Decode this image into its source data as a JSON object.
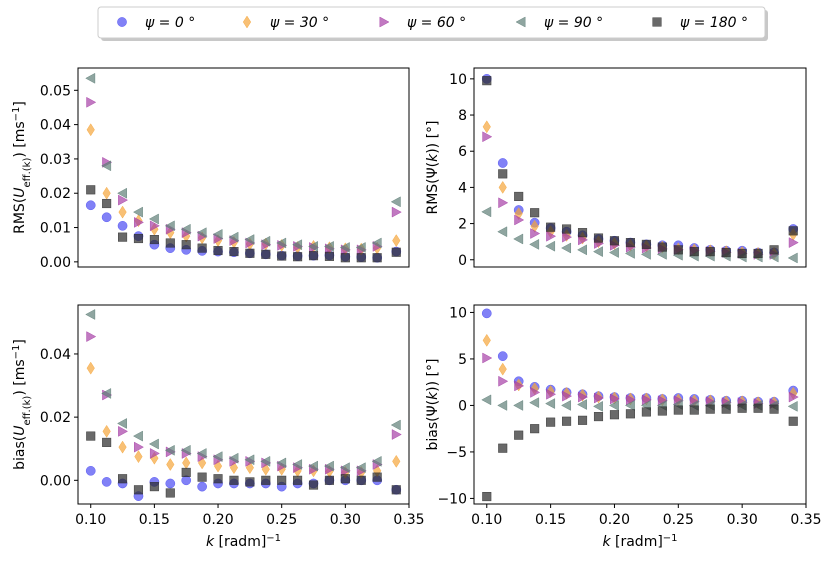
{
  "legend": {
    "entries": [
      {
        "key": "psi0",
        "label": "ψ = 0 °",
        "color": "#4b4bf2",
        "marker": "circle"
      },
      {
        "key": "psi30",
        "label": "ψ = 30 °",
        "color": "#f5a53a",
        "marker": "diamond"
      },
      {
        "key": "psi60",
        "label": "ψ = 60 °",
        "color": "#a640a6",
        "marker": "triangle-right"
      },
      {
        "key": "psi90",
        "label": "ψ = 90 °",
        "color": "#5f7f78",
        "marker": "triangle-left"
      },
      {
        "key": "psi180",
        "label": "ψ = 180 °",
        "color": "#2a2a2a",
        "marker": "square"
      }
    ]
  },
  "chart_data": [
    {
      "id": "rms_u",
      "type": "scatter",
      "title": "",
      "ylabel_prefix": "RMS(",
      "ylabel_var": "U",
      "ylabel_sub": "eff.(k)",
      "ylabel_mid": ") [ms",
      "ylabel_sup": "−1",
      "ylabel_end": "]",
      "xlabel": "",
      "xlim": [
        0.09,
        0.35
      ],
      "ylim": [
        -0.0015,
        0.0565
      ],
      "xticks": [],
      "xtick_labels": [],
      "yticks": [
        0,
        0.01,
        0.02,
        0.03,
        0.04,
        0.05
      ],
      "ytick_labels": [
        "0.00",
        "0.01",
        "0.02",
        "0.03",
        "0.04",
        "0.05"
      ],
      "x": [
        0.1,
        0.1125,
        0.125,
        0.1375,
        0.15,
        0.1625,
        0.175,
        0.1875,
        0.2,
        0.2125,
        0.225,
        0.2375,
        0.25,
        0.2625,
        0.275,
        0.2875,
        0.3,
        0.3125,
        0.325,
        0.34
      ],
      "series": [
        {
          "key": "psi0",
          "values": [
            0.0165,
            0.013,
            0.0105,
            0.0075,
            0.005,
            0.004,
            0.0035,
            0.0032,
            0.003,
            0.0028,
            0.0025,
            0.0022,
            0.0018,
            0.0017,
            0.0018,
            0.0019,
            0.0015,
            0.0014,
            0.0012,
            0.003
          ]
        },
        {
          "key": "psi30",
          "values": [
            0.0385,
            0.02,
            0.0145,
            0.012,
            0.0095,
            0.0085,
            0.0075,
            0.007,
            0.0062,
            0.0057,
            0.0052,
            0.0052,
            0.0048,
            0.0042,
            0.0045,
            0.0041,
            0.0038,
            0.0037,
            0.004,
            0.0062
          ]
        },
        {
          "key": "psi60",
          "values": [
            0.0465,
            0.029,
            0.018,
            0.0115,
            0.0105,
            0.0095,
            0.0085,
            0.0075,
            0.0068,
            0.0062,
            0.0055,
            0.005,
            0.0048,
            0.0045,
            0.0042,
            0.0038,
            0.0035,
            0.0035,
            0.0045,
            0.0145
          ]
        },
        {
          "key": "psi90",
          "values": [
            0.0535,
            0.028,
            0.02,
            0.0145,
            0.0125,
            0.0105,
            0.0095,
            0.0085,
            0.008,
            0.0072,
            0.0065,
            0.006,
            0.0055,
            0.005,
            0.0045,
            0.0045,
            0.0042,
            0.0042,
            0.0055,
            0.0175
          ]
        },
        {
          "key": "psi180",
          "values": [
            0.021,
            0.017,
            0.0072,
            0.0068,
            0.0065,
            0.0055,
            0.005,
            0.004,
            0.0033,
            0.003,
            0.0025,
            0.0022,
            0.0017,
            0.0015,
            0.0018,
            0.0016,
            0.0012,
            0.0012,
            0.0012,
            0.0028
          ]
        }
      ]
    },
    {
      "id": "rms_psi",
      "type": "scatter",
      "title": "",
      "ylabel_prefix": "RMS(Ψ(",
      "ylabel_var": "k",
      "ylabel_sub": "",
      "ylabel_mid": ")) [",
      "ylabel_sup": "",
      "ylabel_end": "°]",
      "xlabel": "",
      "xlim": [
        0.09,
        0.35
      ],
      "ylim": [
        -0.4,
        10.6
      ],
      "xticks": [],
      "xtick_labels": [],
      "yticks": [
        0,
        2,
        4,
        6,
        8,
        10
      ],
      "ytick_labels": [
        "0",
        "2",
        "4",
        "6",
        "8",
        "10"
      ],
      "x": [
        0.1,
        0.1125,
        0.125,
        0.1375,
        0.15,
        0.1625,
        0.175,
        0.1875,
        0.2,
        0.2125,
        0.225,
        0.2375,
        0.25,
        0.2625,
        0.275,
        0.2875,
        0.3,
        0.3125,
        0.325,
        0.34
      ],
      "series": [
        {
          "key": "psi0",
          "values": [
            10.0,
            5.35,
            2.75,
            2.05,
            1.75,
            1.55,
            1.35,
            1.15,
            1.05,
            0.95,
            0.85,
            0.8,
            0.8,
            0.65,
            0.55,
            0.5,
            0.5,
            0.4,
            0.4,
            1.7
          ]
        },
        {
          "key": "psi30",
          "values": [
            7.35,
            4.0,
            2.55,
            1.85,
            1.55,
            1.35,
            1.2,
            1.0,
            0.9,
            0.8,
            0.75,
            0.7,
            0.6,
            0.55,
            0.5,
            0.45,
            0.4,
            0.35,
            0.35,
            1.4
          ]
        },
        {
          "key": "psi60",
          "values": [
            6.8,
            3.15,
            2.2,
            1.45,
            1.3,
            1.25,
            1.1,
            0.9,
            0.8,
            0.7,
            0.65,
            0.6,
            0.55,
            0.5,
            0.45,
            0.4,
            0.35,
            0.3,
            0.3,
            0.95
          ]
        },
        {
          "key": "psi90",
          "values": [
            2.65,
            1.55,
            1.15,
            0.85,
            0.75,
            0.65,
            0.55,
            0.45,
            0.4,
            0.35,
            0.3,
            0.3,
            0.25,
            0.2,
            0.2,
            0.2,
            0.15,
            0.15,
            0.15,
            0.1
          ]
        },
        {
          "key": "psi180",
          "values": [
            9.9,
            4.75,
            3.5,
            2.6,
            1.8,
            1.7,
            1.5,
            1.2,
            1.05,
            0.95,
            0.85,
            0.7,
            0.55,
            0.45,
            0.45,
            0.4,
            0.35,
            0.35,
            0.55,
            1.6
          ]
        }
      ]
    },
    {
      "id": "bias_u",
      "type": "scatter",
      "title": "",
      "ylabel_prefix": "bias(",
      "ylabel_var": "U",
      "ylabel_sub": "eff.(k)",
      "ylabel_mid": ") [ms",
      "ylabel_sup": "−1",
      "ylabel_end": "]",
      "xlabel": "k [radm]",
      "xlabel_sup": "−1",
      "xlim": [
        0.09,
        0.35
      ],
      "ylim": [
        -0.0075,
        0.0555
      ],
      "xticks": [
        0.1,
        0.15,
        0.2,
        0.25,
        0.3,
        0.35
      ],
      "xtick_labels": [
        "0.10",
        "0.15",
        "0.20",
        "0.25",
        "0.30",
        "0.35"
      ],
      "yticks": [
        0,
        0.02,
        0.04
      ],
      "ytick_labels": [
        "0.00",
        "0.02",
        "0.04"
      ],
      "x": [
        0.1,
        0.1125,
        0.125,
        0.1375,
        0.15,
        0.1625,
        0.175,
        0.1875,
        0.2,
        0.2125,
        0.225,
        0.2375,
        0.25,
        0.2625,
        0.275,
        0.2875,
        0.3,
        0.3125,
        0.325,
        0.34
      ],
      "series": [
        {
          "key": "psi0",
          "values": [
            0.003,
            -0.0005,
            -0.001,
            -0.005,
            -0.0005,
            -0.001,
            0.0,
            -0.002,
            -0.001,
            -0.001,
            -0.001,
            -0.001,
            -0.002,
            -0.001,
            -0.001,
            0.0,
            0.0,
            0.0,
            0.0,
            -0.003
          ]
        },
        {
          "key": "psi30",
          "values": [
            0.0355,
            0.0155,
            0.0105,
            0.0075,
            0.007,
            0.005,
            0.0055,
            0.0055,
            0.0045,
            0.004,
            0.004,
            0.0035,
            0.0035,
            0.003,
            0.003,
            0.0028,
            0.0025,
            0.0025,
            0.003,
            0.006
          ]
        },
        {
          "key": "psi60",
          "values": [
            0.0455,
            0.027,
            0.0155,
            0.0105,
            0.0085,
            0.009,
            0.0085,
            0.0075,
            0.0065,
            0.006,
            0.006,
            0.0055,
            0.0045,
            0.004,
            0.0035,
            0.0035,
            0.003,
            0.003,
            0.005,
            0.0145
          ]
        },
        {
          "key": "psi90",
          "values": [
            0.0525,
            0.0275,
            0.018,
            0.014,
            0.0115,
            0.0095,
            0.0095,
            0.0085,
            0.0075,
            0.007,
            0.0065,
            0.006,
            0.0055,
            0.005,
            0.0045,
            0.0045,
            0.004,
            0.004,
            0.006,
            0.0175
          ]
        },
        {
          "key": "psi180",
          "values": [
            0.014,
            0.012,
            0.0005,
            -0.003,
            -0.002,
            -0.004,
            0.0025,
            0.001,
            0.0005,
            0.0,
            -0.0005,
            0.0,
            0.0,
            0.0,
            -0.0015,
            0.0,
            0.0005,
            0.0,
            0.001,
            -0.003
          ]
        }
      ]
    },
    {
      "id": "bias_psi",
      "type": "scatter",
      "title": "",
      "ylabel_prefix": "bias(Ψ(",
      "ylabel_var": "k",
      "ylabel_sub": "",
      "ylabel_mid": ")) [",
      "ylabel_sup": "",
      "ylabel_end": "°]",
      "xlabel": "k [radm]",
      "xlabel_sup": "−1",
      "xlim": [
        0.09,
        0.35
      ],
      "ylim": [
        -10.6,
        10.8
      ],
      "xticks": [
        0.1,
        0.15,
        0.2,
        0.25,
        0.3,
        0.35
      ],
      "xtick_labels": [
        "0.10",
        "0.15",
        "0.20",
        "0.25",
        "0.30",
        "0.35"
      ],
      "yticks": [
        -10,
        -5,
        0,
        5,
        10
      ],
      "ytick_labels": [
        "−10",
        "−5",
        "0",
        "5",
        "10"
      ],
      "x": [
        0.1,
        0.1125,
        0.125,
        0.1375,
        0.15,
        0.1625,
        0.175,
        0.1875,
        0.2,
        0.2125,
        0.225,
        0.2375,
        0.25,
        0.2625,
        0.275,
        0.2875,
        0.3,
        0.3125,
        0.325,
        0.34
      ],
      "series": [
        {
          "key": "psi0",
          "values": [
            9.9,
            5.3,
            2.6,
            2.0,
            1.7,
            1.4,
            1.2,
            1.0,
            0.9,
            0.8,
            0.8,
            0.7,
            0.8,
            0.7,
            0.6,
            0.5,
            0.5,
            0.4,
            0.4,
            1.6
          ]
        },
        {
          "key": "psi30",
          "values": [
            7.0,
            3.9,
            2.2,
            1.8,
            1.5,
            1.3,
            1.1,
            0.9,
            0.8,
            0.7,
            0.7,
            0.6,
            0.6,
            0.5,
            0.5,
            0.4,
            0.4,
            0.3,
            0.3,
            1.3
          ]
        },
        {
          "key": "psi60",
          "values": [
            5.1,
            2.6,
            2.1,
            1.4,
            1.2,
            1.0,
            0.9,
            0.8,
            0.7,
            0.6,
            0.6,
            0.5,
            0.5,
            0.4,
            0.4,
            0.3,
            0.3,
            0.2,
            0.2,
            0.9
          ]
        },
        {
          "key": "psi90",
          "values": [
            0.6,
            0.0,
            0.0,
            0.3,
            0.2,
            0.0,
            0.1,
            -0.1,
            0.0,
            0.0,
            0.0,
            0.0,
            0.1,
            0.0,
            0.0,
            0.0,
            0.0,
            0.0,
            0.0,
            -0.1
          ]
        },
        {
          "key": "psi180",
          "values": [
            -9.8,
            -4.6,
            -3.2,
            -2.5,
            -1.8,
            -1.7,
            -1.6,
            -1.2,
            -1.0,
            -0.9,
            -0.7,
            -0.6,
            -0.5,
            -0.5,
            -0.4,
            -0.4,
            -0.3,
            -0.3,
            -0.4,
            -1.7
          ]
        }
      ]
    }
  ]
}
